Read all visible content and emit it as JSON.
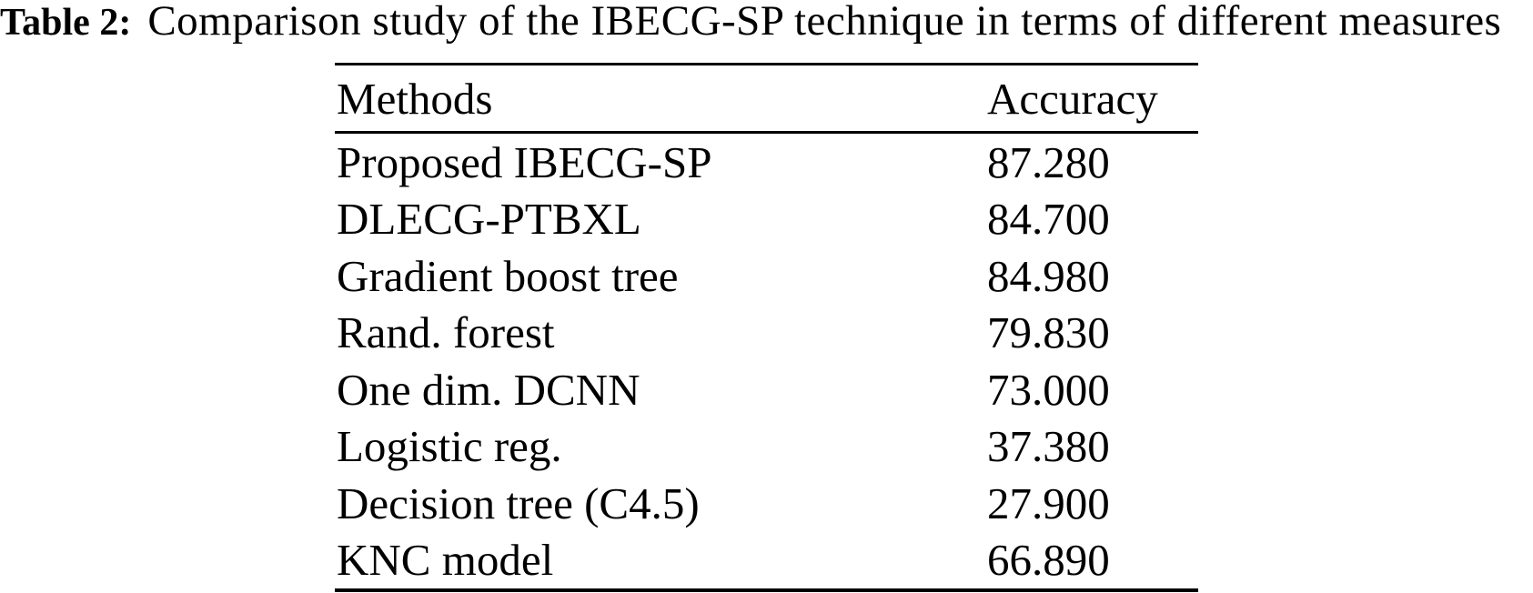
{
  "caption": {
    "label": "Table 2:",
    "text": "Comparison study of the IBECG-SP technique in terms of different measures"
  },
  "table": {
    "headers": {
      "method": "Methods",
      "accuracy": "Accuracy"
    },
    "rows": [
      {
        "method": "Proposed IBECG-SP",
        "accuracy": "87.280"
      },
      {
        "method": "DLECG-PTBXL",
        "accuracy": "84.700"
      },
      {
        "method": "Gradient boost tree",
        "accuracy": "84.980"
      },
      {
        "method": "Rand. forest",
        "accuracy": "79.830"
      },
      {
        "method": "One dim. DCNN",
        "accuracy": "73.000"
      },
      {
        "method": "Logistic reg.",
        "accuracy": "37.380"
      },
      {
        "method": "Decision tree (C4.5)",
        "accuracy": "27.900"
      },
      {
        "method": "KNC model",
        "accuracy": "66.890"
      }
    ]
  },
  "chart_data": {
    "type": "table",
    "title": "Table 2: Comparison study of the IBECG-SP technique in terms of different measures",
    "columns": [
      "Methods",
      "Accuracy"
    ],
    "categories": [
      "Proposed IBECG-SP",
      "DLECG-PTBXL",
      "Gradient boost tree",
      "Rand. forest",
      "One dim. DCNN",
      "Logistic reg.",
      "Decision tree (C4.5)",
      "KNC model"
    ],
    "values": [
      87.28,
      84.7,
      84.98,
      79.83,
      73.0,
      37.38,
      27.9,
      66.89
    ]
  },
  "colors": {
    "text": "#000000",
    "background": "#ffffff",
    "rule": "#000000"
  }
}
